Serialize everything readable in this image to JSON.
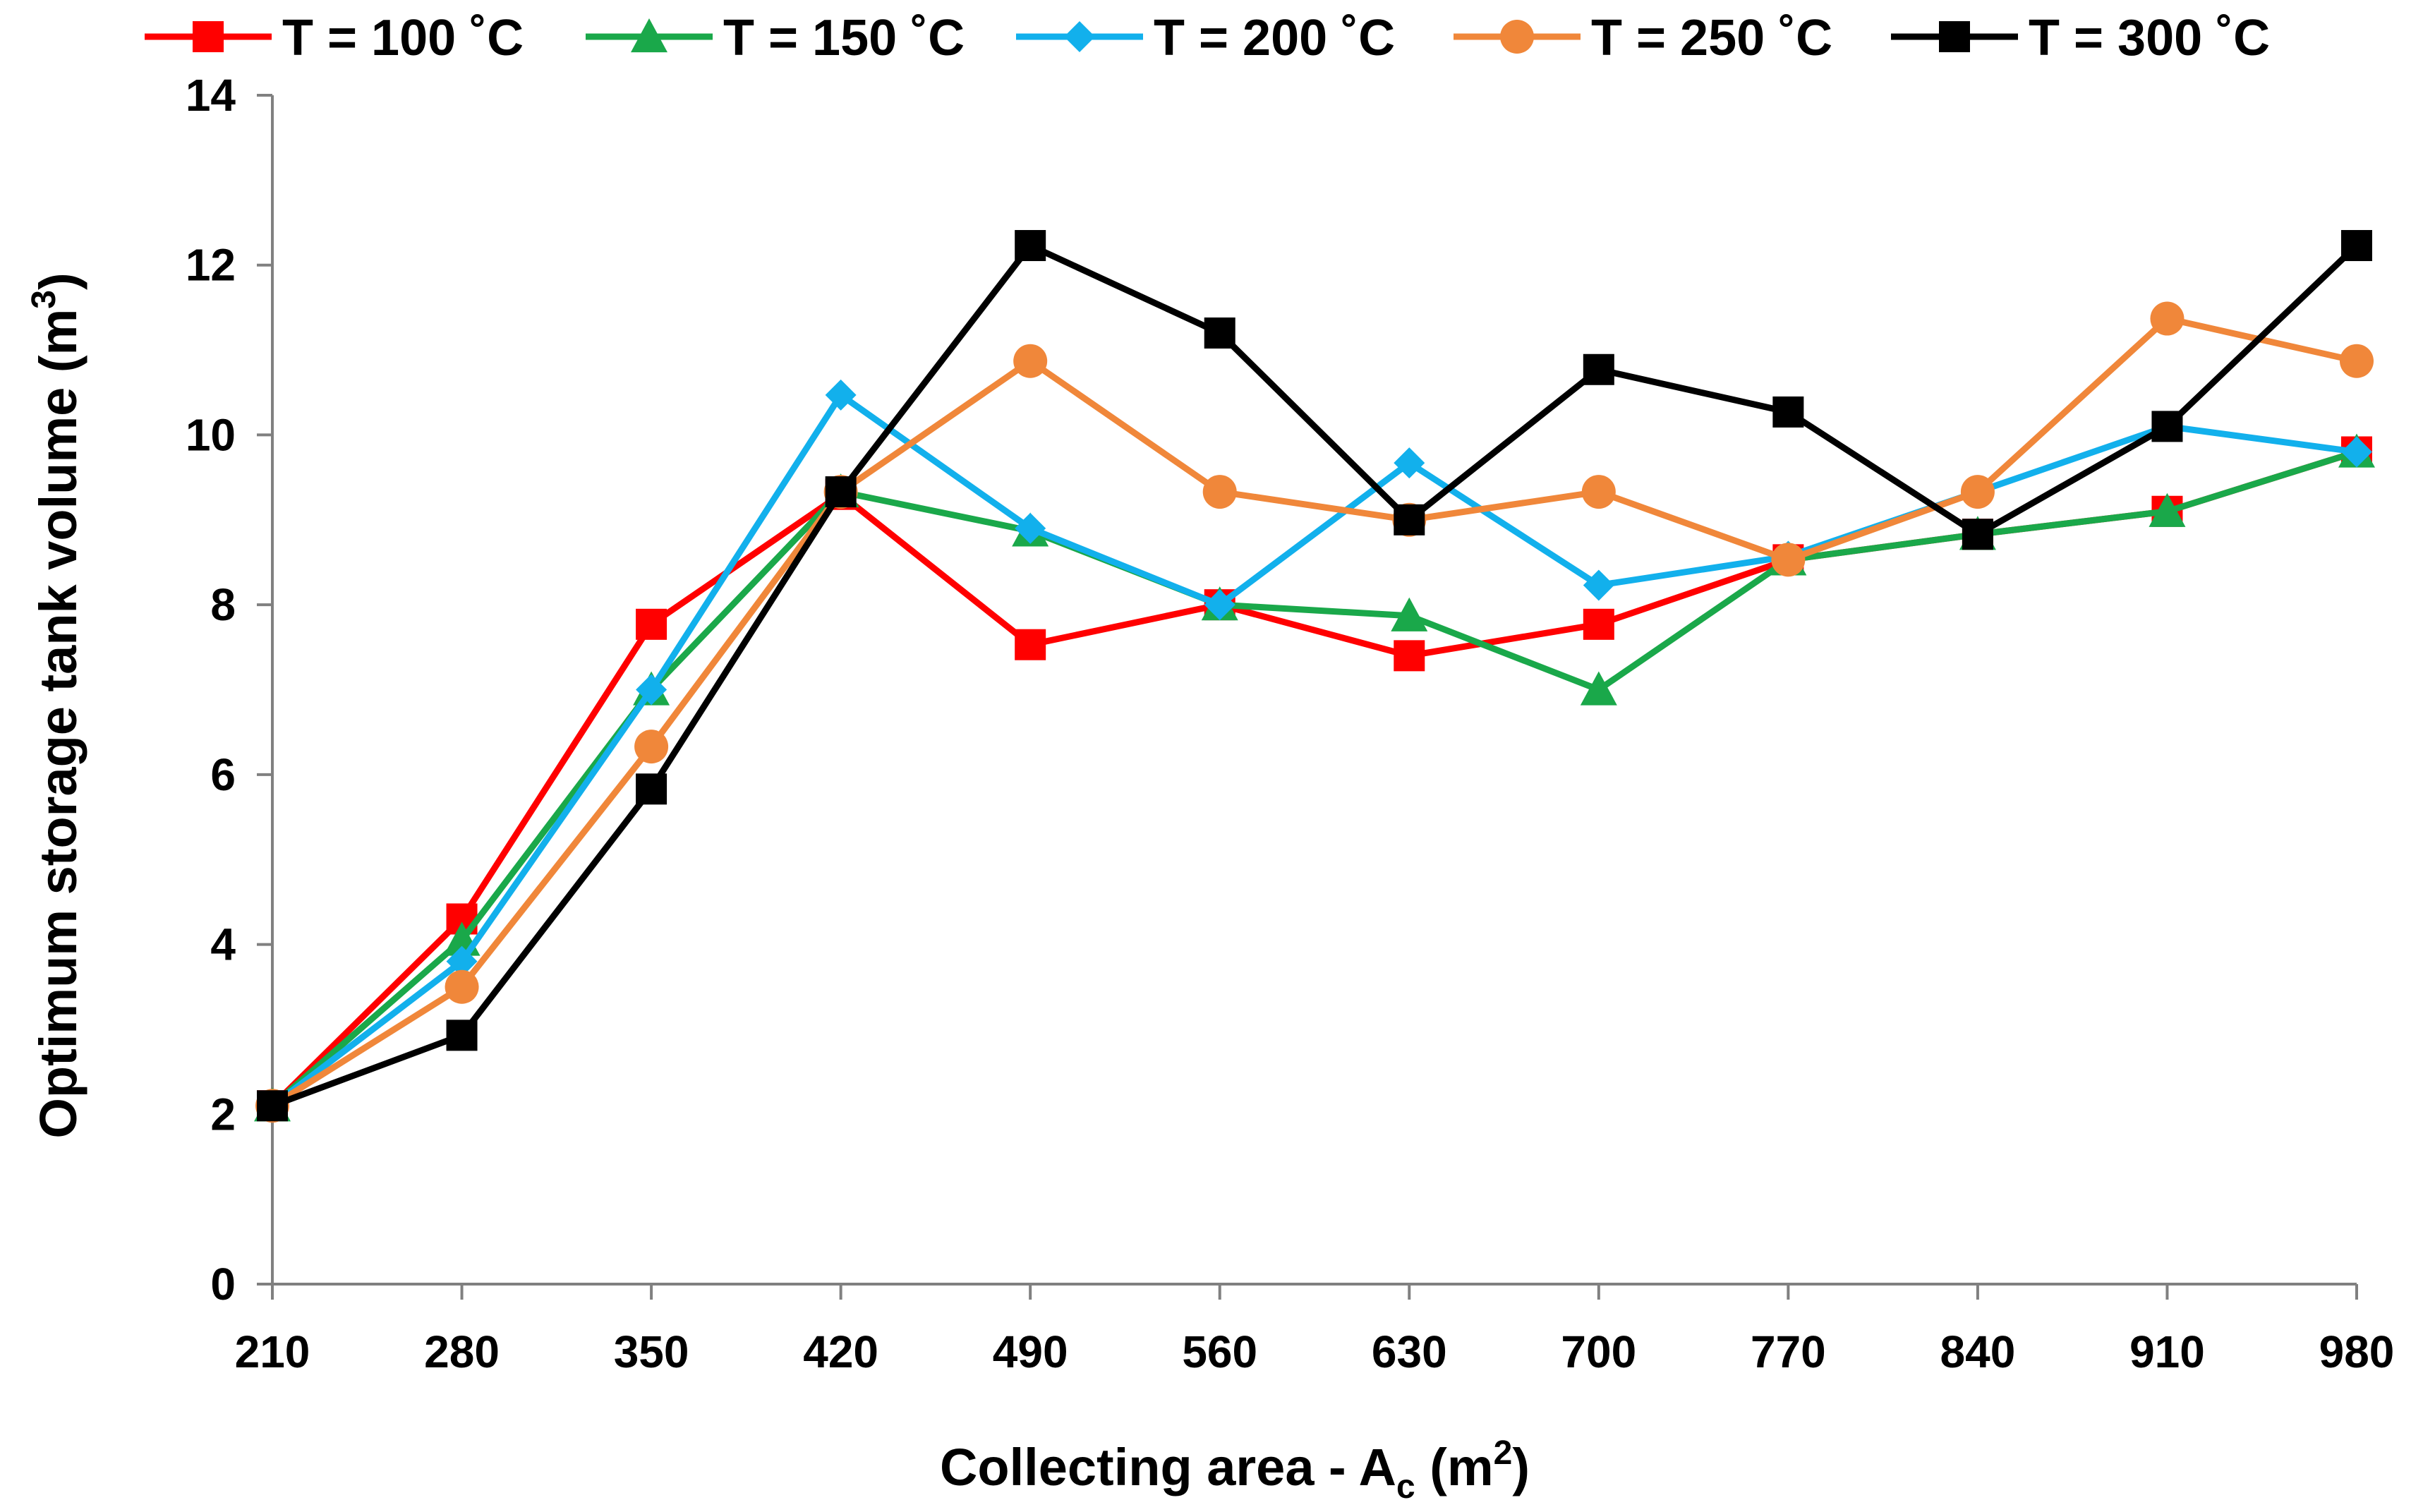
{
  "chart_data": {
    "type": "line",
    "title": "",
    "xlabel": {
      "prefix": "Collecting area - A",
      "subscript": "c",
      "unit_open": " (m",
      "superscript": "2",
      "unit_close": ")"
    },
    "ylabel": {
      "prefix": "Optimum storage tank volume (m",
      "superscript": "3",
      "unit_close": ")"
    },
    "x": [
      210,
      280,
      350,
      420,
      490,
      560,
      630,
      700,
      770,
      840,
      910,
      980
    ],
    "x_tick_labels": [
      "210",
      "280",
      "350",
      "420",
      "490",
      "560",
      "630",
      "700",
      "770",
      "840",
      "910",
      "980"
    ],
    "ylim": [
      0,
      14
    ],
    "y_ticks": [
      0,
      2,
      4,
      6,
      8,
      10,
      12,
      14
    ],
    "y_tick_labels": [
      "0",
      "2",
      "4",
      "6",
      "8",
      "10",
      "12",
      "14"
    ],
    "grid": false,
    "legend_position": "top",
    "series": [
      {
        "name": "T = 100 ˚C",
        "color": "#ff0000",
        "marker": "square",
        "values": [
          2.1,
          4.3,
          7.77,
          9.3,
          7.53,
          8.0,
          7.4,
          7.77,
          8.53,
          8.83,
          9.1,
          9.8
        ]
      },
      {
        "name": "T = 150 ˚C",
        "color": "#1aa84a",
        "marker": "triangle",
        "values": [
          2.1,
          4.05,
          7.0,
          9.33,
          8.87,
          8.0,
          7.87,
          7.0,
          8.53,
          8.83,
          9.1,
          9.8
        ]
      },
      {
        "name": "T = 200 ˚C",
        "color": "#12b0ec",
        "marker": "diamond",
        "values": [
          2.1,
          3.8,
          7.0,
          10.47,
          8.9,
          8.0,
          9.67,
          8.23,
          8.57,
          9.33,
          10.1,
          9.8
        ]
      },
      {
        "name": "T = 250 ˚C",
        "color": "#f0873a",
        "marker": "circle",
        "values": [
          2.1,
          3.5,
          6.33,
          9.33,
          10.87,
          9.33,
          9.0,
          9.33,
          8.53,
          9.33,
          11.37,
          10.87
        ]
      },
      {
        "name": "T = 300 ˚C",
        "color": "#000000",
        "marker": "square",
        "values": [
          2.1,
          2.93,
          5.83,
          9.33,
          12.23,
          11.2,
          9.0,
          10.77,
          10.27,
          8.83,
          10.1,
          12.23
        ]
      }
    ]
  }
}
